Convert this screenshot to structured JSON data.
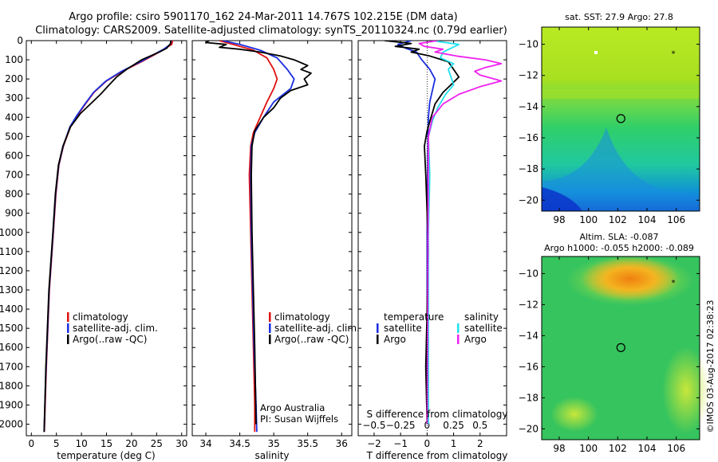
{
  "header": {
    "line1": "Argo profile: csiro 5901170_162 24-Mar-2011 14.767S 102.215E (DM data)",
    "line2": "Climatology: CARS2009. Satellite-adjusted climatology: synTS_20110324.nc (0.79d earlier)"
  },
  "side_label": "©IMOS 03-Aug-2017 02:38:23",
  "colors": {
    "climatology": "#e01010",
    "satellite": "#1a2ee0",
    "argo": "#000000",
    "sal_sat": "#22e0ee",
    "sal_argo": "#ee22ee"
  },
  "chart_data": [
    {
      "id": "temperature",
      "type": "line",
      "xlabel": "temperature (deg C)",
      "xlim": [
        -1,
        31
      ],
      "xticks": [
        0,
        5,
        10,
        15,
        20,
        25,
        30
      ],
      "ylim": [
        2060,
        0
      ],
      "yticks": [
        0,
        100,
        200,
        300,
        400,
        500,
        600,
        700,
        800,
        900,
        1000,
        1100,
        1200,
        1300,
        1400,
        1500,
        1600,
        1700,
        1800,
        1900,
        2000
      ],
      "legend": [
        "climatology",
        "satellite-adj. clim.",
        "Argo(..raw -QC)"
      ],
      "series": [
        {
          "key": "climatology",
          "x": [
            28.2,
            28.0,
            26.5,
            24.8,
            22.0,
            18.2,
            15.0,
            12.5,
            10.8,
            9.2,
            7.8,
            6.4,
            5.5,
            4.9,
            4.4,
            3.6,
            3.0,
            2.6
          ],
          "y": [
            0,
            20,
            45,
            70,
            110,
            160,
            210,
            270,
            330,
            390,
            450,
            550,
            650,
            800,
            1000,
            1300,
            1700,
            2040
          ]
        },
        {
          "key": "satellite",
          "x": [
            27.9,
            27.7,
            26.4,
            24.6,
            21.8,
            18.0,
            14.9,
            12.4,
            10.7,
            9.1,
            7.7,
            6.35,
            5.45,
            4.85,
            4.35,
            3.55,
            2.95,
            2.55
          ],
          "y": [
            0,
            20,
            45,
            70,
            110,
            160,
            210,
            270,
            330,
            390,
            450,
            550,
            650,
            800,
            1000,
            1300,
            1700,
            2040
          ]
        },
        {
          "key": "argo",
          "x": [
            27.8,
            27.8,
            27.0,
            25.5,
            22.0,
            19.0,
            17.0,
            15.2,
            13.8,
            11.8,
            9.8,
            7.8,
            6.3,
            5.4,
            4.8,
            4.3,
            3.5,
            2.9,
            2.55
          ],
          "y": [
            0,
            15,
            40,
            60,
            100,
            150,
            190,
            240,
            280,
            330,
            380,
            450,
            550,
            650,
            800,
            1000,
            1300,
            1700,
            2040
          ]
        }
      ]
    },
    {
      "id": "salinity",
      "type": "line",
      "xlabel": "salinity",
      "xlim": [
        33.8,
        36.15
      ],
      "xticks": [
        34,
        34.5,
        35,
        35.5,
        36
      ],
      "ylim": [
        2060,
        0
      ],
      "legend": [
        "climatology",
        "satellite-adj. clim.",
        "Argo(..raw -QC)"
      ],
      "annotations": [
        "Argo Australia",
        "PI: Susan Wijffels"
      ],
      "series": [
        {
          "key": "climatology",
          "x": [
            34.2,
            34.4,
            34.7,
            34.9,
            35.0,
            35.05,
            35.0,
            34.9,
            34.8,
            34.7,
            34.66,
            34.64,
            34.66,
            34.68,
            34.7,
            34.72,
            34.72
          ],
          "y": [
            0,
            20,
            50,
            90,
            150,
            200,
            250,
            320,
            400,
            480,
            550,
            700,
            1000,
            1300,
            1600,
            1900,
            2040
          ]
        },
        {
          "key": "satellite",
          "x": [
            34.25,
            34.5,
            34.8,
            35.05,
            35.2,
            35.3,
            35.25,
            35.0,
            34.85,
            34.72,
            34.67,
            34.66,
            34.67,
            34.69,
            34.71,
            34.74,
            34.75
          ],
          "y": [
            0,
            20,
            50,
            90,
            150,
            200,
            250,
            320,
            400,
            480,
            550,
            700,
            1000,
            1300,
            1600,
            1900,
            2040
          ]
        },
        {
          "key": "argo",
          "x": [
            34.05,
            34.0,
            34.3,
            34.2,
            34.5,
            34.8,
            35.1,
            35.3,
            35.5,
            35.4,
            35.55,
            35.45,
            35.5,
            35.25,
            35.1,
            35.0,
            34.85,
            34.72,
            34.68,
            34.67,
            34.68,
            34.7,
            34.72,
            34.74
          ],
          "y": [
            0,
            10,
            20,
            35,
            45,
            60,
            80,
            100,
            130,
            150,
            170,
            200,
            230,
            260,
            300,
            350,
            400,
            470,
            550,
            700,
            1000,
            1300,
            1600,
            2000
          ]
        }
      ]
    },
    {
      "id": "differences",
      "type": "line",
      "xlabel": "T difference from climatology",
      "xlabel2": "S difference from climatology",
      "xlim": [
        -2.6,
        3.0
      ],
      "xticks": [
        -2,
        -1,
        0,
        1,
        2
      ],
      "sticks": [
        -0.5,
        -0.25,
        0,
        0.25,
        0.5
      ],
      "ylim": [
        2060,
        0
      ],
      "legend_titles": [
        "temperature",
        "salinity"
      ],
      "legend_t": [
        "satellite",
        "Argo"
      ],
      "legend_s": [
        "satellite",
        "Argo"
      ],
      "series": [
        {
          "key": "temp_satellite",
          "x": [
            -0.6,
            -1.1,
            -0.8,
            -0.4,
            -0.2,
            0.1,
            0.3,
            0.2,
            0.1,
            0.05,
            0.03,
            0.02,
            0.0,
            0.0
          ],
          "y": [
            0,
            20,
            40,
            60,
            100,
            150,
            200,
            260,
            320,
            400,
            500,
            700,
            1000,
            2000
          ]
        },
        {
          "key": "temp_argo",
          "x": [
            -1.6,
            -0.6,
            -1.2,
            -0.3,
            -0.6,
            0.1,
            0.8,
            1.0,
            1.2,
            0.9,
            0.6,
            0.3,
            0.15,
            0.0,
            -0.1,
            -0.05,
            0.0,
            0.05,
            0.0,
            -0.05,
            0.0
          ],
          "y": [
            0,
            15,
            30,
            45,
            60,
            80,
            110,
            150,
            190,
            230,
            270,
            330,
            400,
            470,
            550,
            700,
            900,
            1100,
            1400,
            1700,
            2000
          ]
        },
        {
          "key": "sal_satellite",
          "x": [
            0.2,
            1.2,
            0.9,
            0.6,
            0.5,
            1.0,
            0.8,
            0.9,
            1.0,
            0.7,
            0.4,
            0.2,
            0.05,
            0.1,
            0.05,
            0.05
          ],
          "y": [
            0,
            20,
            40,
            60,
            90,
            120,
            150,
            190,
            230,
            280,
            350,
            420,
            500,
            700,
            1000,
            2000
          ]
        },
        {
          "key": "sal_argo",
          "x": [
            0.4,
            -0.3,
            -0.1,
            0.6,
            0.3,
            1.1,
            2.2,
            2.8,
            2.2,
            1.8,
            2.0,
            2.8,
            2.0,
            1.2,
            0.6,
            0.2,
            0.05,
            0.0
          ],
          "y": [
            0,
            15,
            30,
            45,
            60,
            80,
            100,
            120,
            140,
            160,
            180,
            210,
            240,
            280,
            330,
            400,
            500,
            2000
          ]
        }
      ]
    },
    {
      "id": "sst_map",
      "type": "heatmap",
      "title": "sat. SST: 27.9  Argo: 27.8",
      "xlim": [
        96.8,
        107.6
      ],
      "ylim": [
        -20.7,
        -8.9
      ],
      "xticks": [
        98,
        100,
        102,
        104,
        106
      ],
      "yticks": [
        -10,
        -12,
        -14,
        -16,
        -18,
        -20
      ],
      "argo_position": [
        102.215,
        -14.767
      ]
    },
    {
      "id": "sla_map",
      "type": "heatmap",
      "title": "Altim. SLA: -0.087",
      "subtitle": "Argo h1000: -0.055 h2000: -0.089",
      "xlim": [
        96.8,
        107.6
      ],
      "ylim": [
        -20.7,
        -8.9
      ],
      "xticks": [
        98,
        100,
        102,
        104,
        106
      ],
      "yticks": [
        -10,
        -12,
        -14,
        -16,
        -18,
        -20
      ],
      "argo_position": [
        102.215,
        -14.767
      ]
    }
  ]
}
